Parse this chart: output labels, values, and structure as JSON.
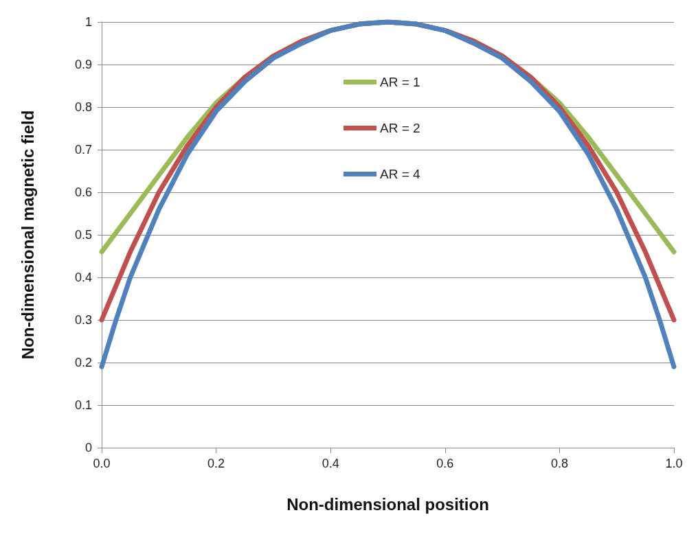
{
  "chart_data": {
    "type": "line",
    "xlabel": "Non-dimensional position",
    "ylabel": "Non-dimensional magnetic field",
    "x": [
      0,
      0.025,
      0.05,
      0.075,
      0.1,
      0.15,
      0.2,
      0.25,
      0.3,
      0.35,
      0.4,
      0.45,
      0.5,
      0.55,
      0.6,
      0.65,
      0.7,
      0.75,
      0.8,
      0.85,
      0.9,
      0.925,
      0.95,
      0.975,
      1
    ],
    "series": [
      {
        "name": "AR = 1",
        "color": "#9bbb59",
        "values": [
          0.46,
          0.505,
          0.55,
          0.595,
          0.64,
          0.73,
          0.81,
          0.87,
          0.92,
          0.955,
          0.98,
          0.995,
          1,
          0.995,
          0.98,
          0.955,
          0.92,
          0.87,
          0.81,
          0.73,
          0.64,
          0.595,
          0.55,
          0.505,
          0.46
        ]
      },
      {
        "name": "AR = 2",
        "color": "#c0504d",
        "values": [
          0.3,
          0.38,
          0.46,
          0.53,
          0.6,
          0.71,
          0.8,
          0.87,
          0.92,
          0.955,
          0.98,
          0.995,
          1,
          0.995,
          0.98,
          0.955,
          0.92,
          0.87,
          0.8,
          0.71,
          0.6,
          0.53,
          0.46,
          0.38,
          0.3
        ]
      },
      {
        "name": "AR = 4",
        "color": "#4f81bd",
        "values": [
          0.19,
          0.3,
          0.4,
          0.48,
          0.56,
          0.69,
          0.79,
          0.86,
          0.915,
          0.95,
          0.98,
          0.995,
          1,
          0.995,
          0.98,
          0.95,
          0.915,
          0.86,
          0.79,
          0.69,
          0.56,
          0.48,
          0.4,
          0.3,
          0.19
        ]
      }
    ],
    "xlim": [
      0,
      1
    ],
    "xticks": [
      {
        "value": 0,
        "label": "0.0"
      },
      {
        "value": 0.2,
        "label": "0.2"
      },
      {
        "value": 0.4,
        "label": "0.4"
      },
      {
        "value": 0.6,
        "label": "0.6"
      },
      {
        "value": 0.8,
        "label": "0.8"
      },
      {
        "value": 1,
        "label": "1.0"
      }
    ],
    "ylim": [
      0,
      1
    ],
    "yticks": [
      0,
      0.1,
      0.2,
      0.3,
      0.4,
      0.5,
      0.6,
      0.7,
      0.8,
      0.9,
      1
    ],
    "grid": "y",
    "legend": "top",
    "marker": "none",
    "line_style": "solid"
  }
}
